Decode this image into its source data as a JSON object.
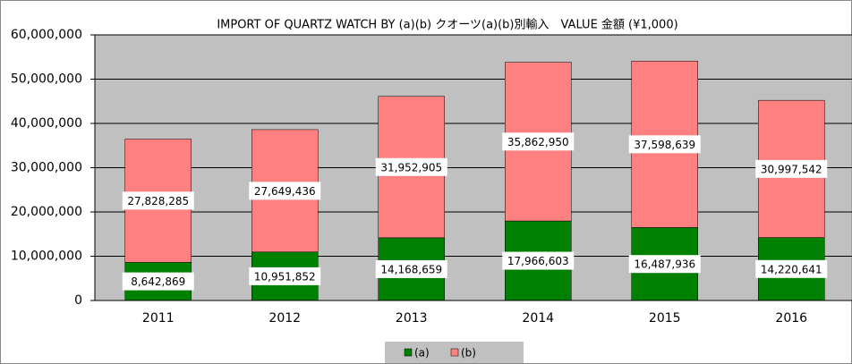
{
  "chart_data": {
    "type": "stacked_bar",
    "title": "IMPORT OF QUARTZ WATCH BY (a)(b) クオーツ(a)(b)別輸入　VALUE 金額 (¥1,000)",
    "categories": [
      "2011",
      "2012",
      "2013",
      "2014",
      "2015",
      "2016"
    ],
    "series": [
      {
        "name": "(a)",
        "color": "#008000",
        "values": [
          8642869,
          10951852,
          14168659,
          17966603,
          16487936,
          14220641
        ],
        "value_labels": [
          "8,642,869",
          "10,951,852",
          "14,168,659",
          "17,966,603",
          "16,487,936",
          "14,220,641"
        ]
      },
      {
        "name": "(b)",
        "color": "#ff8080",
        "values": [
          27828285,
          27649436,
          31952905,
          35862950,
          37598639,
          30997542
        ],
        "value_labels": [
          "27,828,285",
          "27,649,436",
          "31,952,905",
          "35,862,950",
          "37,598,639",
          "30,997,542"
        ]
      }
    ],
    "ylim": [
      0,
      60000000
    ],
    "yticks": [
      0,
      {
        "value": 10000000,
        "label": "10,000,000"
      },
      {
        "value": 20000000,
        "label": "20,000,000"
      },
      {
        "value": 30000000,
        "label": "30,000,000"
      },
      {
        "value": 40000000,
        "label": "40,000,000"
      },
      {
        "value": 50000000,
        "label": "50,000,000"
      },
      {
        "value": 60000000,
        "label": "60,000,000"
      }
    ],
    "grid": true,
    "legend": "bottom"
  }
}
